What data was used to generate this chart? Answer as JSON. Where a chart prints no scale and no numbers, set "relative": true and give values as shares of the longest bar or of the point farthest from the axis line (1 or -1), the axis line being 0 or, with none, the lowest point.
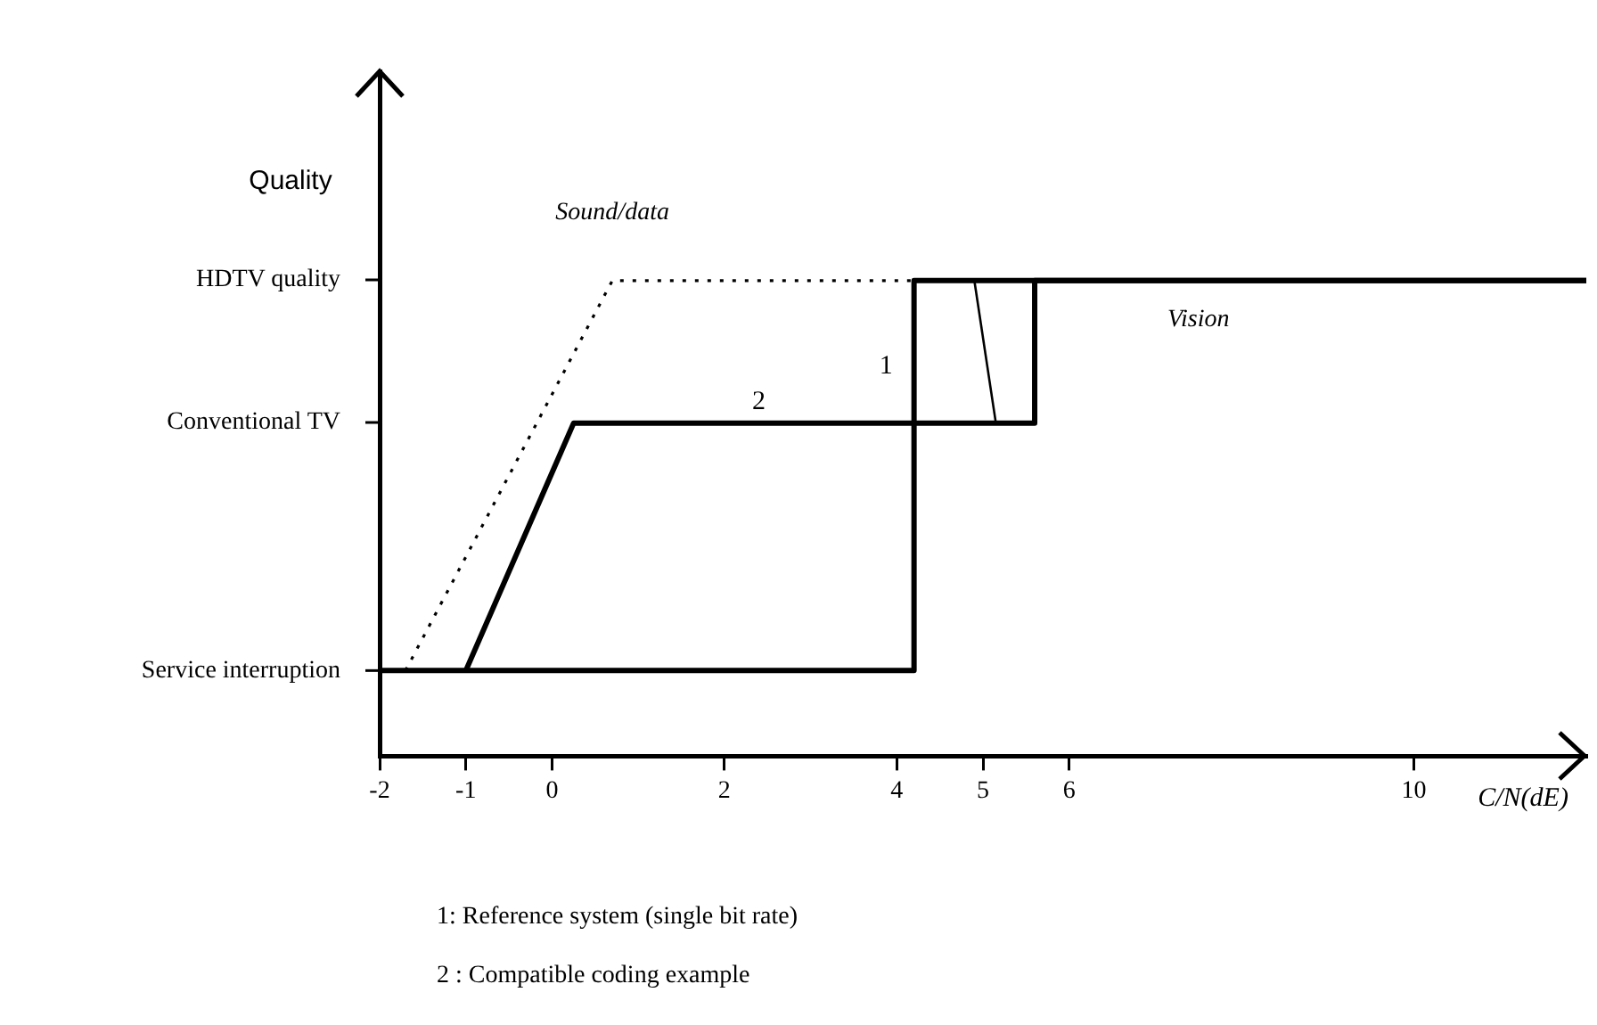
{
  "chart_data": {
    "type": "line",
    "xlabel": "C/N(dE)",
    "ylabel": "Quality",
    "relative": true,
    "xlim": [
      -2,
      12
    ],
    "xticks": [
      -2,
      -1,
      0,
      2,
      4,
      5,
      6,
      10
    ],
    "grid": false,
    "legend": false,
    "series": [
      {
        "color": "#000000",
        "line_style": "dotted",
        "x": [
          -1.7,
          0.7,
          12
        ],
        "values": [
          0.18,
          1,
          1
        ]
      },
      {
        "color": "#000000",
        "x": [
          -2,
          4.2,
          4.2,
          12
        ],
        "values": [
          0.18,
          0.18,
          1,
          1
        ]
      },
      {
        "color": "#000000",
        "x": [
          -1,
          0.25,
          5.6,
          5.6,
          12
        ],
        "values": [
          0.18,
          0.7,
          0.7,
          1,
          1
        ]
      },
      {
        "color": "#000000",
        "x": [
          4.9,
          5.15
        ],
        "values": [
          1,
          0.7
        ]
      }
    ],
    "annotations": [
      "HDTV quality",
      "Conventional TV",
      {
        "text": "Service interruption",
        "x": -2,
        "y": 0.18
      },
      {
        "text": "Sound/data",
        "x": 0.7,
        "y": 1
      },
      {
        "text": "Vision",
        "x": 7.5,
        "y": 1
      },
      {
        "text": "1",
        "x": 4.2,
        "y": 0.82
      },
      {
        "text": "2",
        "x": 2.4,
        "y": 0.7
      },
      "1: Reference system (single bit rate)",
      "2 : Compatible coding example"
    ]
  }
}
